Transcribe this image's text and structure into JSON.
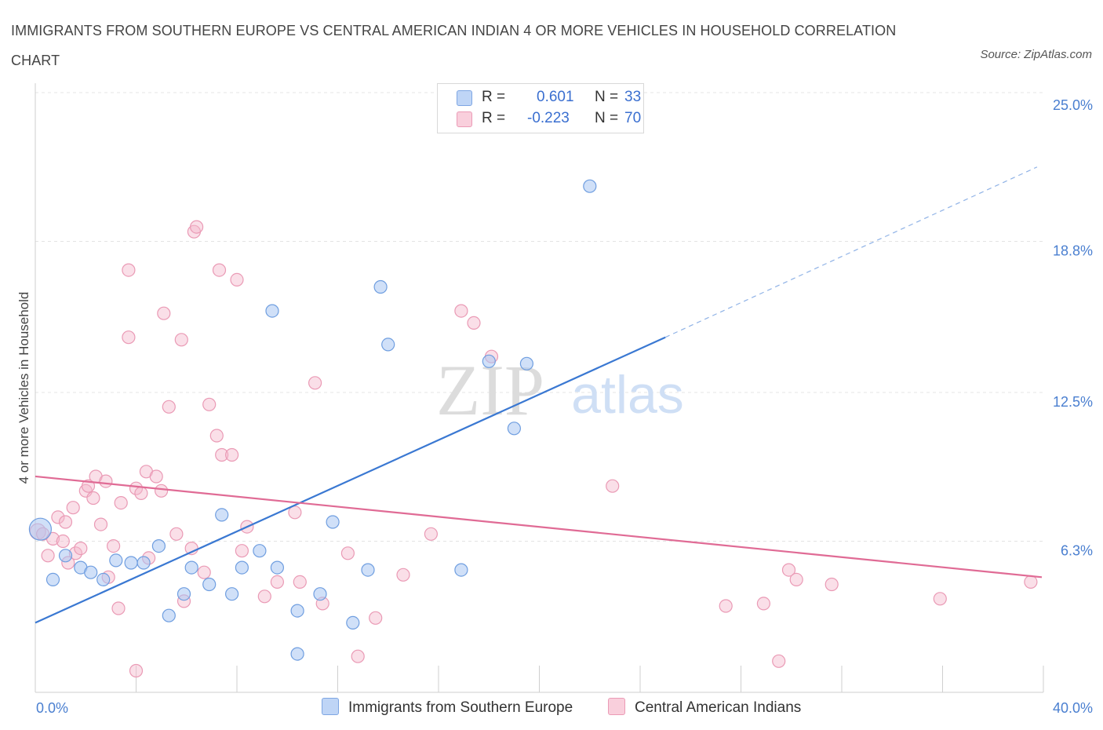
{
  "title": "IMMIGRANTS FROM SOUTHERN EUROPE VS CENTRAL AMERICAN INDIAN 4 OR MORE VEHICLES IN HOUSEHOLD CORRELATION CHART",
  "source": "Source: ZipAtlas.com",
  "watermark": {
    "zip": "ZIP",
    "atlas": "atlas"
  },
  "legend_top": [
    {
      "r_label": "R =",
      "r_value": "0.601",
      "n_label": "N =",
      "n_value": "33",
      "color": "#a9c6f2"
    },
    {
      "r_label": "R =",
      "r_value": "-0.223",
      "n_label": "N =",
      "n_value": "70",
      "color": "#f5b8cb"
    }
  ],
  "chart_data": {
    "type": "scatter",
    "title": "IMMIGRANTS FROM SOUTHERN EUROPE VS CENTRAL AMERICAN INDIAN 4 OR MORE VEHICLES IN HOUSEHOLD CORRELATION CHART",
    "xlabel": "",
    "ylabel": "4 or more Vehicles in Household",
    "xlim": [
      0,
      40
    ],
    "ylim": [
      0,
      25
    ],
    "x_tick_labels": [
      "0.0%",
      "40.0%"
    ],
    "y_ticks": [
      6.3,
      12.5,
      18.8,
      25.0
    ],
    "y_tick_labels": [
      "6.3%",
      "12.5%",
      "18.8%",
      "25.0%"
    ],
    "grid": true,
    "legend_position": "bottom",
    "series": [
      {
        "name": "Immigrants from Southern Europe",
        "color": "#a9c6f2",
        "line_color": "#3a78d2",
        "r": 0.601,
        "n": 33,
        "trend": {
          "x0": 0,
          "y0": 2.9,
          "x1": 25,
          "y1": 14.8,
          "dashed_to_x": 40,
          "dashed_to_y": 21.9
        },
        "points": [
          [
            0.2,
            6.8
          ],
          [
            0.7,
            4.7
          ],
          [
            1.2,
            5.7
          ],
          [
            1.8,
            5.2
          ],
          [
            2.2,
            5.0
          ],
          [
            2.7,
            4.7
          ],
          [
            3.2,
            5.5
          ],
          [
            3.8,
            5.4
          ],
          [
            4.3,
            5.4
          ],
          [
            4.9,
            6.1
          ],
          [
            5.3,
            3.2
          ],
          [
            5.9,
            4.1
          ],
          [
            6.2,
            5.2
          ],
          [
            6.9,
            4.5
          ],
          [
            7.4,
            7.4
          ],
          [
            7.8,
            4.1
          ],
          [
            8.2,
            5.2
          ],
          [
            8.9,
            5.9
          ],
          [
            9.4,
            15.9
          ],
          [
            9.6,
            5.2
          ],
          [
            10.4,
            3.4
          ],
          [
            10.4,
            1.6
          ],
          [
            11.3,
            4.1
          ],
          [
            11.8,
            7.1
          ],
          [
            12.6,
            2.9
          ],
          [
            13.2,
            5.1
          ],
          [
            13.7,
            16.9
          ],
          [
            14.0,
            14.5
          ],
          [
            16.9,
            5.1
          ],
          [
            18.0,
            13.8
          ],
          [
            19.0,
            11.0
          ],
          [
            19.5,
            13.7
          ],
          [
            22.0,
            21.1
          ]
        ]
      },
      {
        "name": "Central American Indians",
        "color": "#f5b8cb",
        "line_color": "#e06b95",
        "r": -0.223,
        "n": 70,
        "trend": {
          "x0": 0,
          "y0": 9.0,
          "x1": 40,
          "y1": 4.8
        },
        "points": [
          [
            0.1,
            6.7
          ],
          [
            0.3,
            6.6
          ],
          [
            0.5,
            5.7
          ],
          [
            0.7,
            6.4
          ],
          [
            0.9,
            7.3
          ],
          [
            1.1,
            6.3
          ],
          [
            1.2,
            7.1
          ],
          [
            1.3,
            5.4
          ],
          [
            1.5,
            7.7
          ],
          [
            1.6,
            5.8
          ],
          [
            1.8,
            6.0
          ],
          [
            2.0,
            8.4
          ],
          [
            2.1,
            8.6
          ],
          [
            2.3,
            8.1
          ],
          [
            2.4,
            9.0
          ],
          [
            2.6,
            7.0
          ],
          [
            2.8,
            8.8
          ],
          [
            2.9,
            4.8
          ],
          [
            3.1,
            6.1
          ],
          [
            3.3,
            3.5
          ],
          [
            3.4,
            7.9
          ],
          [
            3.7,
            17.6
          ],
          [
            3.7,
            14.8
          ],
          [
            4.0,
            0.9
          ],
          [
            4.0,
            8.5
          ],
          [
            4.2,
            8.3
          ],
          [
            4.4,
            9.2
          ],
          [
            4.5,
            5.6
          ],
          [
            4.8,
            9.0
          ],
          [
            5.0,
            8.4
          ],
          [
            5.1,
            15.8
          ],
          [
            5.3,
            11.9
          ],
          [
            5.6,
            6.6
          ],
          [
            5.8,
            14.7
          ],
          [
            5.9,
            3.8
          ],
          [
            6.2,
            6.0
          ],
          [
            6.3,
            19.2
          ],
          [
            6.4,
            19.4
          ],
          [
            6.7,
            5.0
          ],
          [
            6.9,
            12.0
          ],
          [
            7.2,
            10.7
          ],
          [
            7.3,
            17.6
          ],
          [
            7.4,
            9.9
          ],
          [
            7.8,
            9.9
          ],
          [
            8.0,
            17.2
          ],
          [
            8.2,
            5.9
          ],
          [
            8.4,
            6.9
          ],
          [
            9.1,
            4.0
          ],
          [
            9.6,
            4.6
          ],
          [
            10.3,
            7.5
          ],
          [
            10.5,
            4.6
          ],
          [
            11.1,
            12.9
          ],
          [
            11.4,
            3.7
          ],
          [
            12.4,
            5.8
          ],
          [
            12.8,
            1.5
          ],
          [
            13.5,
            3.1
          ],
          [
            14.6,
            4.9
          ],
          [
            15.7,
            6.6
          ],
          [
            16.9,
            15.9
          ],
          [
            17.4,
            15.4
          ],
          [
            18.1,
            14.0
          ],
          [
            22.9,
            8.6
          ],
          [
            27.4,
            3.6
          ],
          [
            28.9,
            3.7
          ],
          [
            29.5,
            1.3
          ],
          [
            29.9,
            5.1
          ],
          [
            30.2,
            4.7
          ],
          [
            31.6,
            4.5
          ],
          [
            35.9,
            3.9
          ],
          [
            39.5,
            4.6
          ]
        ]
      }
    ]
  }
}
